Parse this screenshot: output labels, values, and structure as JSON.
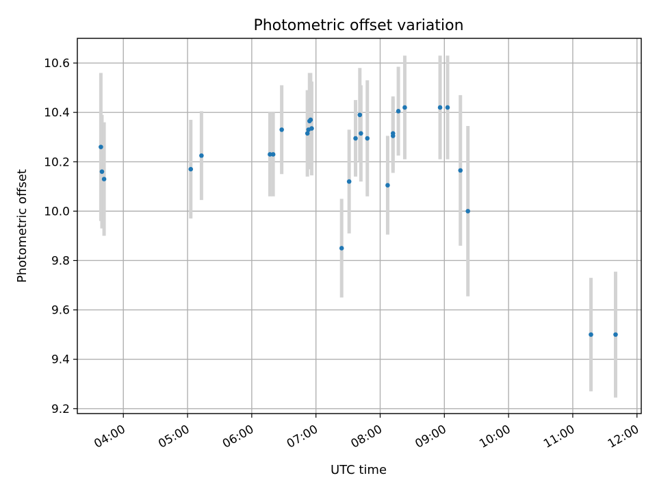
{
  "chart_data": {
    "type": "scatter",
    "title": "Photometric offset variation",
    "xlabel": "UTC time",
    "ylabel": "Photometric offset",
    "x_unit": "hours UTC",
    "xlim": [
      "03:17",
      "12:04"
    ],
    "ylim": [
      9.18,
      10.7
    ],
    "x_ticks": [
      "04:00",
      "05:00",
      "06:00",
      "07:00",
      "08:00",
      "09:00",
      "10:00",
      "11:00",
      "12:00"
    ],
    "y_ticks": [
      "9.2",
      "9.4",
      "9.6",
      "9.8",
      "10.0",
      "10.2",
      "10.4",
      "10.6"
    ],
    "grid": true,
    "marker_color": "#1f77b4",
    "errorbar_color": "#d3d3d3",
    "points": [
      {
        "x": "03:39",
        "y": 10.26,
        "err": 0.3
      },
      {
        "x": "03:40",
        "y": 10.16,
        "err": 0.23
      },
      {
        "x": "03:42",
        "y": 10.13,
        "err": 0.23
      },
      {
        "x": "05:03",
        "y": 10.17,
        "err": 0.2
      },
      {
        "x": "05:13",
        "y": 10.225,
        "err": 0.18
      },
      {
        "x": "06:17",
        "y": 10.23,
        "err": 0.17
      },
      {
        "x": "06:20",
        "y": 10.23,
        "err": 0.17
      },
      {
        "x": "06:28",
        "y": 10.33,
        "err": 0.18
      },
      {
        "x": "06:52",
        "y": 10.315,
        "err": 0.175
      },
      {
        "x": "06:53",
        "y": 10.33,
        "err": 0.16
      },
      {
        "x": "06:54",
        "y": 10.365,
        "err": 0.195
      },
      {
        "x": "06:55",
        "y": 10.37,
        "err": 0.19
      },
      {
        "x": "06:56",
        "y": 10.335,
        "err": 0.19
      },
      {
        "x": "07:24",
        "y": 9.85,
        "err": 0.2
      },
      {
        "x": "07:31",
        "y": 10.12,
        "err": 0.21
      },
      {
        "x": "07:37",
        "y": 10.295,
        "err": 0.155
      },
      {
        "x": "07:41",
        "y": 10.39,
        "err": 0.19
      },
      {
        "x": "07:42",
        "y": 10.315,
        "err": 0.195
      },
      {
        "x": "07:48",
        "y": 10.295,
        "err": 0.235
      },
      {
        "x": "08:07",
        "y": 10.105,
        "err": 0.2
      },
      {
        "x": "08:12",
        "y": 10.305,
        "err": 0.15
      },
      {
        "x": "08:12",
        "y": 10.315,
        "err": 0.15
      },
      {
        "x": "08:17",
        "y": 10.405,
        "err": 0.18
      },
      {
        "x": "08:23",
        "y": 10.42,
        "err": 0.21
      },
      {
        "x": "08:56",
        "y": 10.42,
        "err": 0.21
      },
      {
        "x": "09:03",
        "y": 10.42,
        "err": 0.21
      },
      {
        "x": "09:15",
        "y": 10.165,
        "err": 0.305
      },
      {
        "x": "09:22",
        "y": 10.0,
        "err": 0.345
      },
      {
        "x": "11:17",
        "y": 9.5,
        "err": 0.23
      },
      {
        "x": "11:40",
        "y": 9.5,
        "err": 0.255
      }
    ]
  }
}
